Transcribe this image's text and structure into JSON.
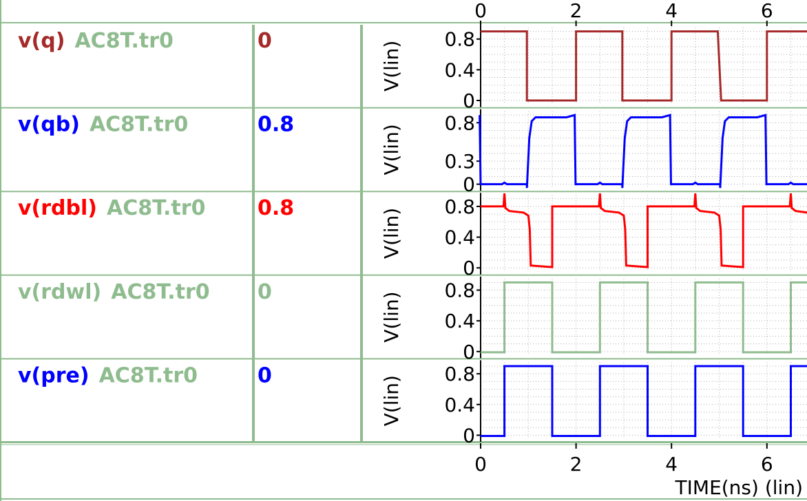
{
  "chart_data": {
    "type": "line",
    "x_axis": {
      "ticks": [
        "0",
        "2",
        "4",
        "6"
      ],
      "xlim": [
        -0.1,
        6.85
      ],
      "label": "TIME(ns) (lin)"
    },
    "panels": [
      {
        "name": "v(q)",
        "file": "AC8T.tr0",
        "value": "0",
        "color": "#a52a2a",
        "ylabel": "V(lin)",
        "ylim": [
          -0.05,
          0.95
        ],
        "yticks": [
          {
            "v": 0.8,
            "label": "0.8"
          },
          {
            "v": 0.4,
            "label": "0.4"
          },
          {
            "v": 0,
            "label": "0"
          }
        ],
        "points": [
          [
            0,
            0.9
          ],
          [
            0.97,
            0.9
          ],
          [
            0.97,
            0
          ],
          [
            2,
            0
          ],
          [
            2,
            0.9
          ],
          [
            2.97,
            0.9
          ],
          [
            2.97,
            0
          ],
          [
            4,
            0
          ],
          [
            4,
            0.9
          ],
          [
            4.97,
            0.9
          ],
          [
            5.04,
            0
          ],
          [
            6,
            0
          ],
          [
            6,
            0.9
          ],
          [
            6.85,
            0.9
          ]
        ]
      },
      {
        "name": "v(qb)",
        "file": "AC8T.tr0",
        "value": "0.8",
        "color": "#0000ff",
        "ylabel": "V(lin)",
        "ylim": [
          -0.05,
          0.95
        ],
        "yticks": [
          {
            "v": 0.8,
            "label": "0.8"
          },
          {
            "v": 0.3,
            "label": "0.3"
          },
          {
            "v": 0,
            "label": "0"
          }
        ],
        "points": [
          [
            -0.02,
            0.9
          ],
          [
            0,
            0
          ],
          [
            0.45,
            0
          ],
          [
            0.5,
            0.02
          ],
          [
            0.55,
            0
          ],
          [
            0.97,
            0
          ],
          [
            0.97,
            -0.05
          ],
          [
            1.02,
            0.6
          ],
          [
            1.07,
            0.82
          ],
          [
            1.15,
            0.87
          ],
          [
            1.8,
            0.87
          ],
          [
            1.97,
            0.9
          ],
          [
            1.99,
            0
          ],
          [
            2.45,
            0
          ],
          [
            2.5,
            0.02
          ],
          [
            2.55,
            0
          ],
          [
            2.97,
            0
          ],
          [
            2.97,
            -0.05
          ],
          [
            3.02,
            0.6
          ],
          [
            3.07,
            0.82
          ],
          [
            3.15,
            0.87
          ],
          [
            3.8,
            0.87
          ],
          [
            3.97,
            0.9
          ],
          [
            3.99,
            0
          ],
          [
            4.45,
            0
          ],
          [
            4.5,
            0.02
          ],
          [
            4.55,
            0
          ],
          [
            5.02,
            0
          ],
          [
            5.02,
            -0.05
          ],
          [
            5.07,
            0.6
          ],
          [
            5.12,
            0.82
          ],
          [
            5.2,
            0.87
          ],
          [
            5.8,
            0.87
          ],
          [
            5.97,
            0.9
          ],
          [
            5.99,
            0
          ],
          [
            6.45,
            0
          ],
          [
            6.5,
            0.02
          ],
          [
            6.55,
            0
          ],
          [
            6.85,
            0
          ]
        ]
      },
      {
        "name": "v(rdbl)",
        "file": "AC8T.tr0",
        "value": "0.8",
        "color": "#ff0000",
        "ylabel": "V(lin)",
        "ylim": [
          -0.05,
          0.95
        ],
        "yticks": [
          {
            "v": 0.8,
            "label": "0.8"
          },
          {
            "v": 0.4,
            "label": "0.4"
          },
          {
            "v": 0,
            "label": "0"
          }
        ],
        "points": [
          [
            0,
            0.8
          ],
          [
            0.48,
            0.8
          ],
          [
            0.5,
            0.97
          ],
          [
            0.52,
            0.78
          ],
          [
            0.6,
            0.74
          ],
          [
            0.9,
            0.72
          ],
          [
            1.0,
            0.68
          ],
          [
            1.03,
            0.5
          ],
          [
            1.05,
            0.03
          ],
          [
            1.5,
            0.01
          ],
          [
            1.5,
            0.8
          ],
          [
            2.48,
            0.8
          ],
          [
            2.5,
            0.97
          ],
          [
            2.52,
            0.78
          ],
          [
            2.6,
            0.74
          ],
          [
            2.9,
            0.72
          ],
          [
            3.0,
            0.68
          ],
          [
            3.03,
            0.5
          ],
          [
            3.05,
            0.03
          ],
          [
            3.5,
            0.01
          ],
          [
            3.5,
            0.8
          ],
          [
            4.48,
            0.8
          ],
          [
            4.5,
            0.97
          ],
          [
            4.52,
            0.78
          ],
          [
            4.6,
            0.74
          ],
          [
            4.9,
            0.72
          ],
          [
            5.0,
            0.68
          ],
          [
            5.03,
            0.5
          ],
          [
            5.05,
            0.03
          ],
          [
            5.5,
            0.01
          ],
          [
            5.5,
            0.8
          ],
          [
            6.48,
            0.8
          ],
          [
            6.5,
            0.97
          ],
          [
            6.52,
            0.78
          ],
          [
            6.6,
            0.74
          ],
          [
            6.85,
            0.72
          ]
        ]
      },
      {
        "name": "v(rdwl)",
        "file": "AC8T.tr0",
        "value": "0",
        "color": "#8fbc8f",
        "ylabel": "V(lin)",
        "ylim": [
          -0.05,
          0.95
        ],
        "yticks": [
          {
            "v": 0.8,
            "label": "0.8"
          },
          {
            "v": 0.4,
            "label": "0.4"
          },
          {
            "v": 0,
            "label": "0"
          }
        ],
        "points": [
          [
            0,
            -0.01
          ],
          [
            0.5,
            -0.01
          ],
          [
            0.5,
            0.9
          ],
          [
            1.5,
            0.9
          ],
          [
            1.5,
            -0.01
          ],
          [
            2.5,
            -0.01
          ],
          [
            2.5,
            0.9
          ],
          [
            3.5,
            0.9
          ],
          [
            3.5,
            -0.01
          ],
          [
            4.5,
            -0.01
          ],
          [
            4.5,
            0.9
          ],
          [
            5.5,
            0.9
          ],
          [
            5.5,
            -0.01
          ],
          [
            6.5,
            -0.01
          ],
          [
            6.5,
            0.9
          ],
          [
            6.85,
            0.9
          ]
        ]
      },
      {
        "name": "v(pre)",
        "file": "AC8T.tr0",
        "value": "0",
        "color": "#0000ff",
        "ylabel": "V(lin)",
        "ylim": [
          -0.05,
          0.95
        ],
        "yticks": [
          {
            "v": 0.8,
            "label": "0.8"
          },
          {
            "v": 0.4,
            "label": "0.4"
          },
          {
            "v": 0,
            "label": "0"
          }
        ],
        "points": [
          [
            0,
            -0.01
          ],
          [
            0.5,
            -0.01
          ],
          [
            0.5,
            0.9
          ],
          [
            1.5,
            0.9
          ],
          [
            1.5,
            -0.01
          ],
          [
            2.5,
            -0.01
          ],
          [
            2.5,
            0.9
          ],
          [
            3.5,
            0.9
          ],
          [
            3.5,
            -0.01
          ],
          [
            4.5,
            -0.01
          ],
          [
            4.5,
            0.9
          ],
          [
            5.5,
            0.9
          ],
          [
            5.5,
            -0.01
          ],
          [
            6.5,
            -0.01
          ],
          [
            6.5,
            0.9
          ],
          [
            6.85,
            0.9
          ]
        ]
      }
    ]
  }
}
